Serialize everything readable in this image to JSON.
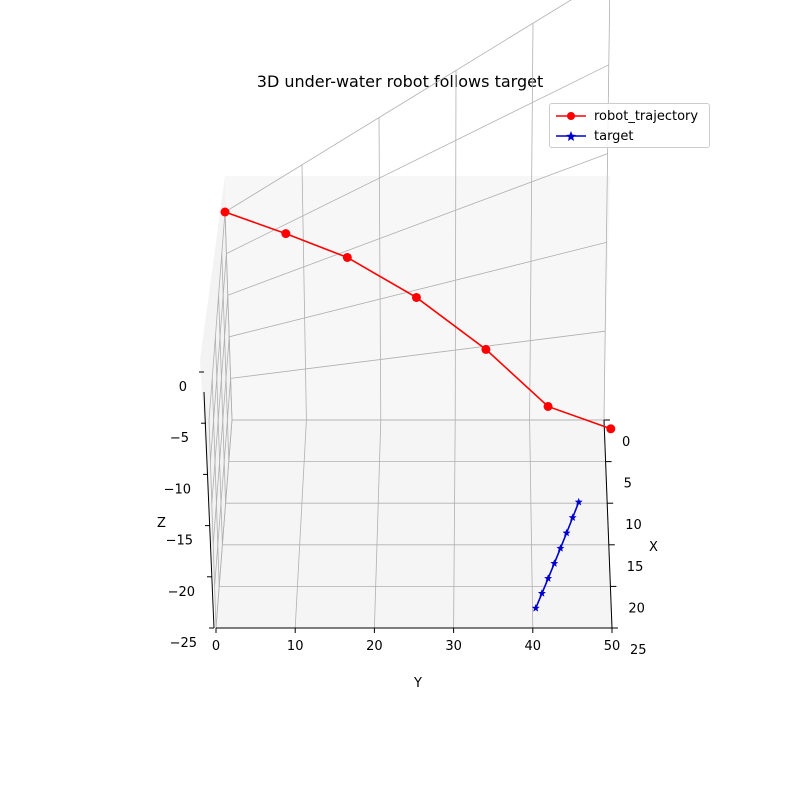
{
  "chart_data": {
    "type": "line",
    "projection": "3d",
    "title": "3D under-water robot follows target",
    "xlabel": "X",
    "ylabel": "Y",
    "zlabel": "Z",
    "xlim": [
      0,
      25
    ],
    "ylim": [
      0,
      50
    ],
    "zlim": [
      -25,
      0
    ],
    "x_ticks": [
      "0",
      "5",
      "10",
      "15",
      "20",
      "25"
    ],
    "y_ticks": [
      "0",
      "10",
      "20",
      "30",
      "40",
      "50"
    ],
    "z_ticks": [
      "0",
      "−5",
      "−10",
      "−15",
      "−20",
      "−25"
    ],
    "grid": true,
    "legend_position": "top-right",
    "series": [
      {
        "name": "robot_trajectory",
        "color": "#ff0000",
        "marker": "circle",
        "points": [
          {
            "x": 0,
            "y": 0,
            "z": 0
          },
          {
            "x": 3,
            "y": 8,
            "z": -3.5
          },
          {
            "x": 5,
            "y": 16,
            "z": -7
          },
          {
            "x": 8,
            "y": 25,
            "z": -10.5
          },
          {
            "x": 11,
            "y": 34,
            "z": -14
          },
          {
            "x": 14,
            "y": 42,
            "z": -17
          },
          {
            "x": 16,
            "y": 50,
            "z": -18
          }
        ]
      },
      {
        "name": "target",
        "color": "#0000ff",
        "marker": "star",
        "points": [
          {
            "x": 16,
            "y": 46,
            "z": -22
          },
          {
            "x": 17,
            "y": 45.2,
            "z": -22.4
          },
          {
            "x": 18,
            "y": 44.4,
            "z": -22.8
          },
          {
            "x": 19,
            "y": 43.6,
            "z": -23.2
          },
          {
            "x": 20,
            "y": 42.8,
            "z": -23.6
          },
          {
            "x": 21,
            "y": 42,
            "z": -24
          },
          {
            "x": 22,
            "y": 41.2,
            "z": -24.4
          },
          {
            "x": 23,
            "y": 40.4,
            "z": -24.8
          }
        ]
      }
    ]
  }
}
